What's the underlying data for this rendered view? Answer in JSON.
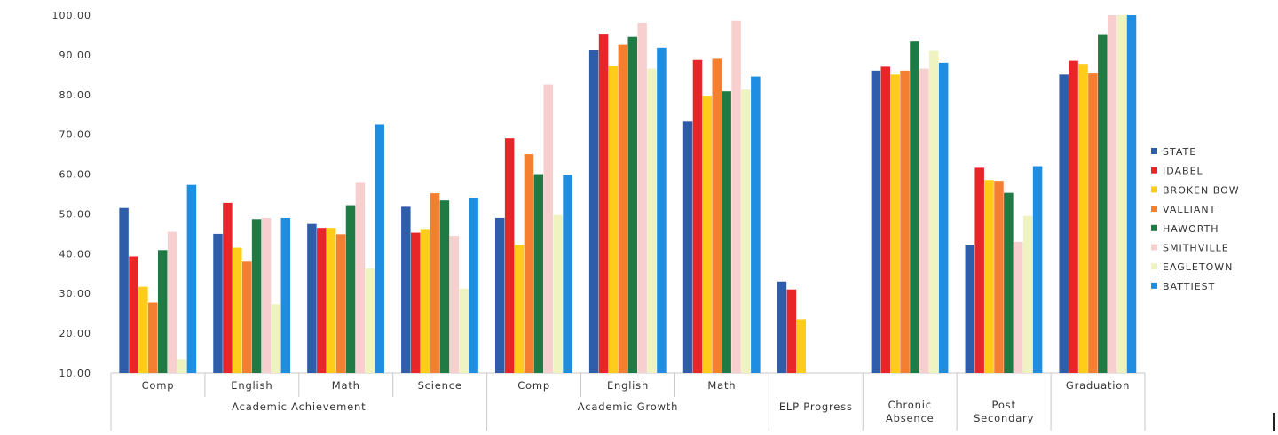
{
  "chart_data": {
    "type": "bar",
    "title": "",
    "xlabel": "",
    "ylabel": "",
    "ylim": [
      10,
      100
    ],
    "yticks": [
      10,
      20,
      30,
      40,
      50,
      60,
      70,
      80,
      90,
      100
    ],
    "ytick_labels": [
      "10.00",
      "20.00",
      "30.00",
      "40.00",
      "50.00",
      "60.00",
      "70.00",
      "80.00",
      "90.00",
      "100.00"
    ],
    "grid": false,
    "legend_position": "right",
    "categories": [
      "Comp",
      "English",
      "Math",
      "Science",
      "Comp",
      "English",
      "Math",
      "ELP Progress",
      "Chronic Absence",
      "Post Secondary",
      "Graduation"
    ],
    "category_labels": [
      [
        "Comp"
      ],
      [
        "English"
      ],
      [
        "Math"
      ],
      [
        "Science"
      ],
      [
        "Comp"
      ],
      [
        "English"
      ],
      [
        "Math"
      ],
      [],
      [
        "Chronic",
        "Absence"
      ],
      [
        "Post",
        "Secondary"
      ],
      [
        "Graduation"
      ]
    ],
    "groups": [
      {
        "label": "Academic Achievement",
        "start": 0,
        "end": 3
      },
      {
        "label": "Academic Growth",
        "start": 4,
        "end": 6
      },
      {
        "label": "ELP Progress",
        "start": 7,
        "end": 7
      }
    ],
    "series": [
      {
        "name": "STATE",
        "color": "#2e5ea9",
        "values": [
          51.5,
          45.0,
          47.5,
          51.8,
          49.0,
          91.2,
          73.2,
          33.0,
          86.0,
          42.3,
          85.0
        ]
      },
      {
        "name": "IDABEL",
        "color": "#e8262a",
        "values": [
          39.3,
          52.8,
          46.5,
          45.3,
          69.0,
          95.3,
          88.7,
          31.0,
          87.0,
          61.6,
          88.5
        ]
      },
      {
        "name": "BROKEN BOW",
        "color": "#ffcc1a",
        "values": [
          31.7,
          41.5,
          46.5,
          46.0,
          42.2,
          87.2,
          79.7,
          23.5,
          85.0,
          58.5,
          87.7
        ]
      },
      {
        "name": "VALLIANT",
        "color": "#f57f30",
        "values": [
          27.7,
          38.0,
          44.9,
          55.2,
          65.0,
          92.5,
          89.0,
          null,
          86.0,
          58.3,
          85.5
        ]
      },
      {
        "name": "HAWORTH",
        "color": "#1f7a44",
        "values": [
          40.9,
          48.7,
          52.2,
          53.4,
          60.0,
          94.5,
          80.8,
          null,
          93.5,
          55.3,
          95.2
        ]
      },
      {
        "name": "SMITHVILLE",
        "color": "#f8cfcf",
        "values": [
          45.5,
          49.0,
          58.0,
          44.5,
          82.5,
          98.0,
          98.5,
          null,
          86.5,
          43.0,
          100.0
        ]
      },
      {
        "name": "EAGLETOWN",
        "color": "#eef3c0",
        "values": [
          13.5,
          27.3,
          36.3,
          31.2,
          49.7,
          86.5,
          81.3,
          null,
          91.0,
          49.5,
          100.0
        ]
      },
      {
        "name": "BATTIEST",
        "color": "#1f8de0",
        "values": [
          57.3,
          49.0,
          72.5,
          54.0,
          59.8,
          91.8,
          84.5,
          null,
          88.0,
          62.0,
          100.0
        ]
      }
    ]
  }
}
